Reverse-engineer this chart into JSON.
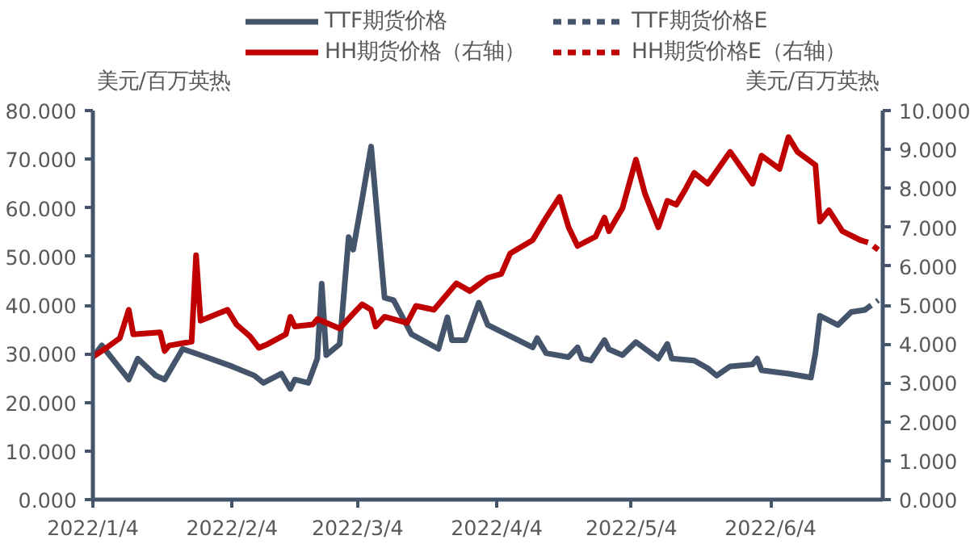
{
  "chart_data": {
    "type": "line",
    "ylabel": "美元/百万英热",
    "y2label": "美元/百万英热",
    "xlim": [
      "2022-01-04",
      "2022-06-29"
    ],
    "xticks": [
      {
        "value": "2022-01-04",
        "label": "2022/1/4"
      },
      {
        "value": "2022-02-04",
        "label": "2022/2/4"
      },
      {
        "value": "2022-03-04",
        "label": "2022/3/4"
      },
      {
        "value": "2022-04-04",
        "label": "2022/4/4"
      },
      {
        "value": "2022-05-04",
        "label": "2022/5/4"
      },
      {
        "value": "2022-06-04",
        "label": "2022/6/4"
      }
    ],
    "ylim": [
      0,
      80
    ],
    "yticks": [
      {
        "value": 0,
        "label": "0.000"
      },
      {
        "value": 10,
        "label": "10.000"
      },
      {
        "value": 20,
        "label": "20.000"
      },
      {
        "value": 30,
        "label": "30.000"
      },
      {
        "value": 40,
        "label": "40.000"
      },
      {
        "value": 50,
        "label": "50.000"
      },
      {
        "value": 60,
        "label": "60.000"
      },
      {
        "value": 70,
        "label": "70.000"
      },
      {
        "value": 80,
        "label": "80.000"
      }
    ],
    "y2lim": [
      0,
      10
    ],
    "y2ticks": [
      {
        "value": 0,
        "label": "0.000"
      },
      {
        "value": 1,
        "label": "1.000"
      },
      {
        "value": 2,
        "label": "2.000"
      },
      {
        "value": 3,
        "label": "3.000"
      },
      {
        "value": 4,
        "label": "4.000"
      },
      {
        "value": 5,
        "label": "5.000"
      },
      {
        "value": 6,
        "label": "6.000"
      },
      {
        "value": 7,
        "label": "7.000"
      },
      {
        "value": 8,
        "label": "8.000"
      },
      {
        "value": 9,
        "label": "9.000"
      },
      {
        "value": 10,
        "label": "10.000"
      }
    ],
    "grid": false,
    "legend": "top",
    "marker": "none",
    "series": [
      {
        "name": "TTF期货价格",
        "color": "#44546a",
        "line_style": "solid",
        "x": [
          "2022-01-04",
          "2022-01-06",
          "2022-01-09",
          "2022-01-12",
          "2022-01-14",
          "2022-01-18",
          "2022-01-20",
          "2022-01-24",
          "2022-01-28",
          "2022-02-04",
          "2022-02-09",
          "2022-02-11",
          "2022-02-15",
          "2022-02-17",
          "2022-02-18",
          "2022-02-21",
          "2022-02-23",
          "2022-02-24",
          "2022-02-25",
          "2022-02-28",
          "2022-03-02",
          "2022-03-03",
          "2022-03-05",
          "2022-03-07",
          "2022-03-10",
          "2022-03-12",
          "2022-03-16",
          "2022-03-22",
          "2022-03-24",
          "2022-03-25",
          "2022-03-28",
          "2022-03-31",
          "2022-04-02",
          "2022-04-12",
          "2022-04-13",
          "2022-04-15",
          "2022-04-20",
          "2022-04-22",
          "2022-04-23",
          "2022-04-25",
          "2022-04-28",
          "2022-04-29",
          "2022-05-02",
          "2022-05-05",
          "2022-05-10",
          "2022-05-12",
          "2022-05-13",
          "2022-05-18",
          "2022-05-21",
          "2022-05-23",
          "2022-05-26",
          "2022-05-31",
          "2022-06-01",
          "2022-06-02",
          "2022-06-08",
          "2022-06-13",
          "2022-06-14",
          "2022-06-15",
          "2022-06-19",
          "2022-06-22",
          "2022-06-25"
        ],
        "values": [
          29.3,
          31.7,
          28.2,
          24.7,
          29,
          25.5,
          24.7,
          31,
          29.7,
          27.4,
          25.5,
          24,
          25.9,
          22.8,
          24.7,
          24,
          29,
          44.4,
          29.7,
          32,
          54,
          51.4,
          61.8,
          72.6,
          41.5,
          41,
          34,
          31,
          37.5,
          32.8,
          32.8,
          40.5,
          35.9,
          31.3,
          33.2,
          30.1,
          29.3,
          31.3,
          29,
          28.6,
          32.8,
          30.9,
          29.7,
          32.4,
          29,
          32,
          29,
          28.6,
          27,
          25.5,
          27.4,
          27.8,
          29,
          26.6,
          25.9,
          25.1,
          30.1,
          37.8,
          35.9,
          38.6,
          39
        ]
      },
      {
        "name": "TTF期货价格E",
        "color": "#44546a",
        "line_style": "dashed",
        "x": [
          "2022-06-25",
          "2022-06-28"
        ],
        "values": [
          39,
          41
        ]
      },
      {
        "name": "HH期货价格（右轴）",
        "color": "#c00000",
        "line_style": "solid",
        "axis": "y2",
        "x": [
          "2022-01-04",
          "2022-01-07",
          "2022-01-10",
          "2022-01-12",
          "2022-01-13",
          "2022-01-19",
          "2022-01-20",
          "2022-01-21",
          "2022-01-26",
          "2022-01-27",
          "2022-01-28",
          "2022-02-03",
          "2022-02-05",
          "2022-02-08",
          "2022-02-10",
          "2022-02-12",
          "2022-02-16",
          "2022-02-17",
          "2022-02-18",
          "2022-02-22",
          "2022-02-23",
          "2022-02-28",
          "2022-03-03",
          "2022-03-05",
          "2022-03-07",
          "2022-03-08",
          "2022-03-10",
          "2022-03-15",
          "2022-03-17",
          "2022-03-21",
          "2022-03-26",
          "2022-03-29",
          "2022-04-02",
          "2022-04-05",
          "2022-04-07",
          "2022-04-12",
          "2022-04-15",
          "2022-04-18",
          "2022-04-20",
          "2022-04-22",
          "2022-04-26",
          "2022-04-28",
          "2022-04-29",
          "2022-05-02",
          "2022-05-05",
          "2022-05-07",
          "2022-05-10",
          "2022-05-12",
          "2022-05-14",
          "2022-05-16",
          "2022-05-18",
          "2022-05-21",
          "2022-05-26",
          "2022-05-31",
          "2022-06-02",
          "2022-06-06",
          "2022-06-08",
          "2022-06-10",
          "2022-06-14",
          "2022-06-15",
          "2022-06-17",
          "2022-06-20",
          "2022-06-24"
        ],
        "values": [
          3.67,
          3.9,
          4.15,
          4.88,
          4.25,
          4.3,
          3.82,
          3.96,
          4.06,
          6.28,
          4.6,
          4.88,
          4.5,
          4.2,
          3.9,
          4.0,
          4.25,
          4.7,
          4.45,
          4.5,
          4.64,
          4.4,
          4.78,
          5.02,
          4.88,
          4.45,
          4.7,
          4.54,
          4.98,
          4.88,
          5.56,
          5.36,
          5.7,
          5.8,
          6.33,
          6.67,
          7.25,
          7.78,
          7.0,
          6.52,
          6.76,
          7.25,
          6.9,
          7.49,
          8.74,
          7.87,
          7.0,
          7.68,
          7.58,
          7.97,
          8.4,
          8.12,
          8.94,
          8.12,
          8.84,
          8.5,
          9.32,
          8.94,
          8.6,
          7.15,
          7.44,
          6.9,
          6.67
        ]
      },
      {
        "name": "HH期货价格E（右轴）",
        "color": "#c00000",
        "line_style": "dashed",
        "axis": "y2",
        "x": [
          "2022-06-24",
          "2022-06-26",
          "2022-06-28"
        ],
        "values": [
          6.67,
          6.6,
          6.42
        ]
      }
    ]
  }
}
